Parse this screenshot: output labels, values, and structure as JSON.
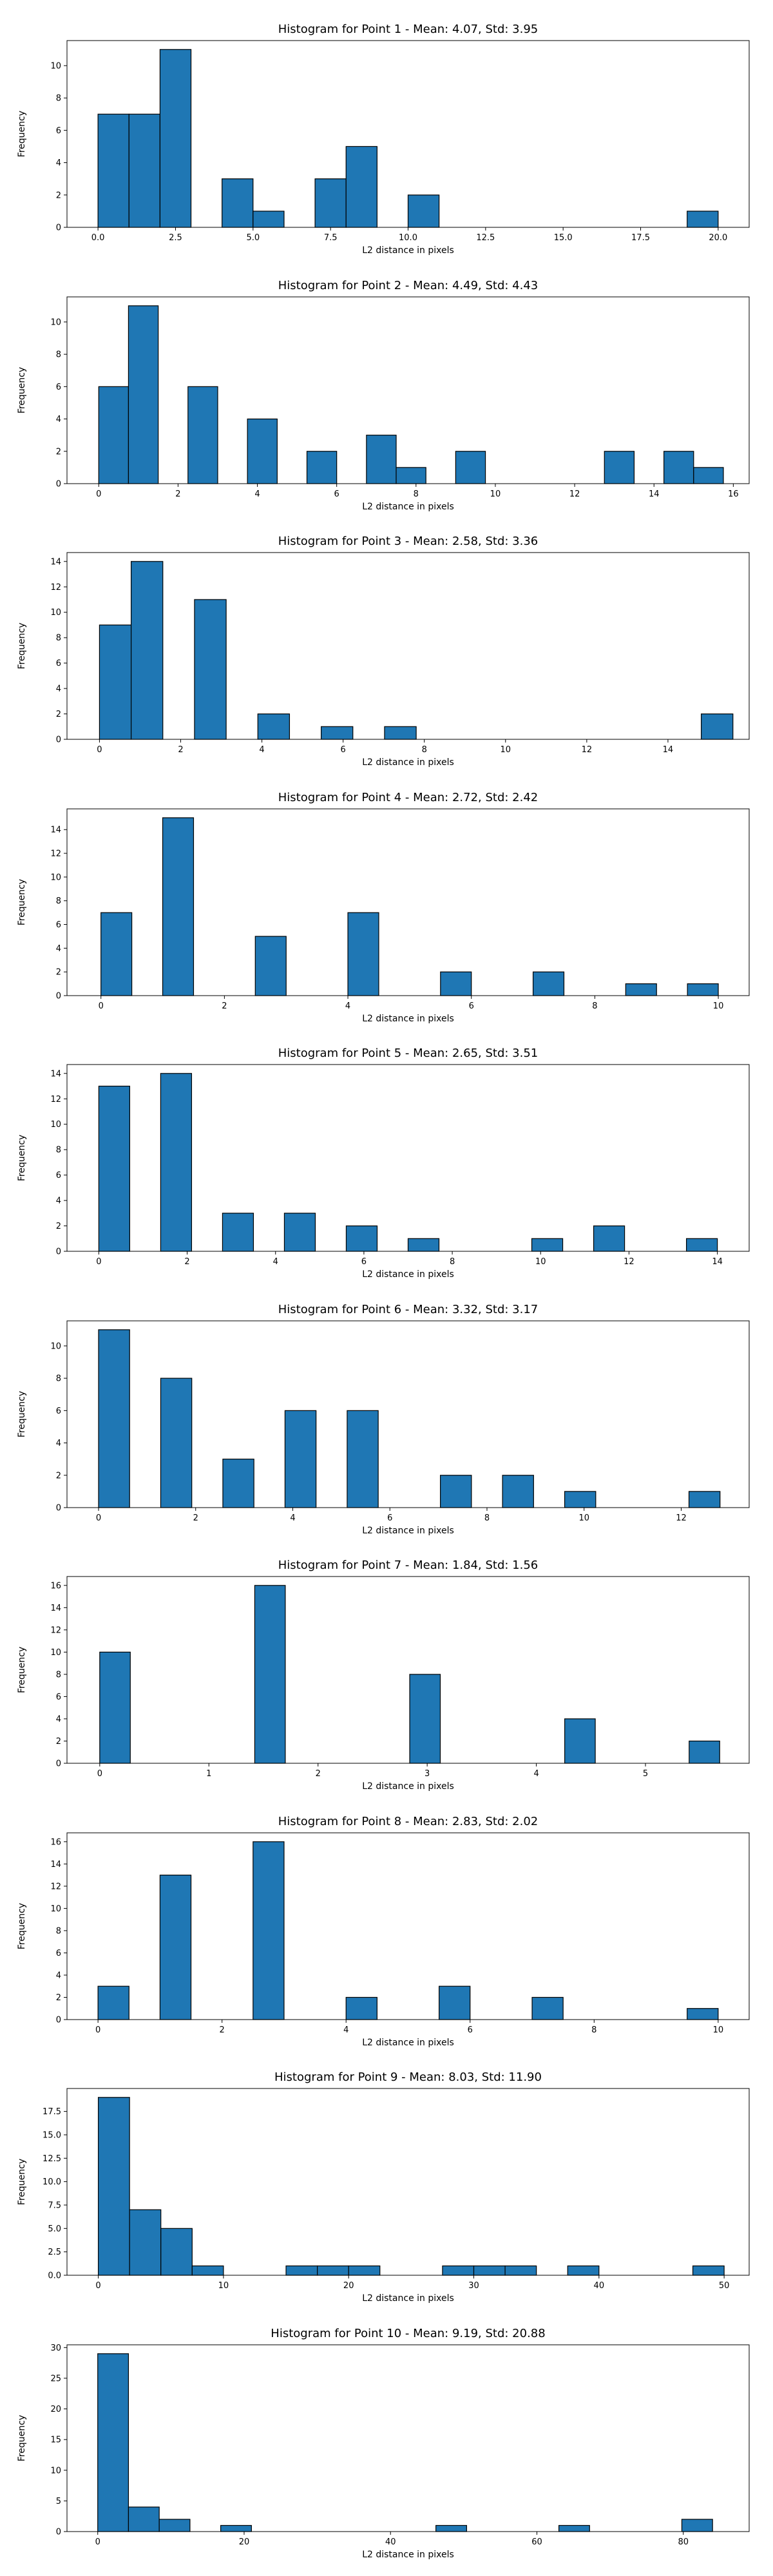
{
  "figure": {
    "bar_color": "#1f77b4",
    "edge_color": "#000000"
  },
  "chart_data": [
    {
      "type": "bar",
      "title": "Histogram for Point 1 - Mean: 4.07, Std: 3.95",
      "xlabel": "L2 distance in pixels",
      "ylabel": "Frequency",
      "xlim": [
        -1,
        21
      ],
      "ylim": [
        0,
        11.55
      ],
      "xticks": [
        0,
        2.5,
        5,
        7.5,
        10,
        12.5,
        15,
        17.5,
        20
      ],
      "xtick_labels": [
        "0.0",
        "2.5",
        "5.0",
        "7.5",
        "10.0",
        "12.5",
        "15.0",
        "17.5",
        "20.0"
      ],
      "yticks": [
        0,
        2,
        4,
        6,
        8,
        10
      ],
      "ytick_labels": [
        "0",
        "2",
        "4",
        "6",
        "8",
        "10"
      ],
      "bins": [
        [
          0,
          1,
          7
        ],
        [
          1,
          2,
          7
        ],
        [
          2,
          3,
          11
        ],
        [
          4,
          5,
          3
        ],
        [
          5,
          6,
          1
        ],
        [
          7,
          8,
          3
        ],
        [
          8,
          9,
          5
        ],
        [
          10,
          11,
          2
        ],
        [
          19,
          20,
          1
        ]
      ]
    },
    {
      "type": "bar",
      "title": "Histogram for Point 2 - Mean: 4.49, Std: 4.43",
      "xlabel": "L2 distance in pixels",
      "ylabel": "Frequency",
      "xlim": [
        -0.8,
        16.4
      ],
      "ylim": [
        0,
        11.55
      ],
      "xticks": [
        0,
        2,
        4,
        6,
        8,
        10,
        12,
        14,
        16
      ],
      "xtick_labels": [
        "0",
        "2",
        "4",
        "6",
        "8",
        "10",
        "12",
        "14",
        "16"
      ],
      "yticks": [
        0,
        2,
        4,
        6,
        8,
        10
      ],
      "ytick_labels": [
        "0",
        "2",
        "4",
        "6",
        "8",
        "10"
      ],
      "bins": [
        [
          0,
          0.75,
          6
        ],
        [
          0.75,
          1.5,
          11
        ],
        [
          2.25,
          3,
          6
        ],
        [
          3.75,
          4.5,
          4
        ],
        [
          5.25,
          6,
          2
        ],
        [
          6.75,
          7.5,
          3
        ],
        [
          7.5,
          8.25,
          1
        ],
        [
          9,
          9.75,
          2
        ],
        [
          12.75,
          13.5,
          2
        ],
        [
          14.25,
          15,
          2
        ],
        [
          15,
          15.75,
          1
        ]
      ]
    },
    {
      "type": "bar",
      "title": "Histogram for Point 3 - Mean: 2.58, Std: 3.36",
      "xlabel": "L2 distance in pixels",
      "ylabel": "Frequency",
      "xlim": [
        -0.8,
        16.0
      ],
      "ylim": [
        0,
        14.7
      ],
      "xticks": [
        0,
        2,
        4,
        6,
        8,
        10,
        12,
        14
      ],
      "xtick_labels": [
        "0",
        "2",
        "4",
        "6",
        "8",
        "10",
        "12",
        "14"
      ],
      "yticks": [
        0,
        2,
        4,
        6,
        8,
        10,
        12,
        14
      ],
      "ytick_labels": [
        "0",
        "2",
        "4",
        "6",
        "8",
        "10",
        "12",
        "14"
      ],
      "bins": [
        [
          0,
          0.78,
          9
        ],
        [
          0.78,
          1.56,
          14
        ],
        [
          2.34,
          3.12,
          11
        ],
        [
          3.9,
          4.68,
          2
        ],
        [
          5.46,
          6.24,
          1
        ],
        [
          7.02,
          7.8,
          1
        ],
        [
          14.82,
          15.6,
          2
        ]
      ]
    },
    {
      "type": "bar",
      "title": "Histogram for Point 4 - Mean: 2.72, Std: 2.42",
      "xlabel": "L2 distance in pixels",
      "ylabel": "Frequency",
      "xlim": [
        -0.55,
        10.5
      ],
      "ylim": [
        0,
        15.75
      ],
      "xticks": [
        0,
        2,
        4,
        6,
        8,
        10
      ],
      "xtick_labels": [
        "0",
        "2",
        "4",
        "6",
        "8",
        "10"
      ],
      "yticks": [
        0,
        2,
        4,
        6,
        8,
        10,
        12,
        14
      ],
      "ytick_labels": [
        "0",
        "2",
        "4",
        "6",
        "8",
        "10",
        "12",
        "14"
      ],
      "bins": [
        [
          0,
          0.5,
          7
        ],
        [
          1,
          1.5,
          15
        ],
        [
          2.5,
          3,
          5
        ],
        [
          4,
          4.5,
          7
        ],
        [
          5.5,
          6,
          2
        ],
        [
          7,
          7.5,
          2
        ],
        [
          8.5,
          9,
          1
        ],
        [
          9.5,
          10,
          1
        ]
      ]
    },
    {
      "type": "bar",
      "title": "Histogram for Point 5 - Mean: 2.65, Std: 3.51",
      "xlabel": "L2 distance in pixels",
      "ylabel": "Frequency",
      "xlim": [
        -0.72,
        14.72
      ],
      "ylim": [
        0,
        14.7
      ],
      "xticks": [
        0,
        2,
        4,
        6,
        8,
        10,
        12,
        14
      ],
      "xtick_labels": [
        "0",
        "2",
        "4",
        "6",
        "8",
        "10",
        "12",
        "14"
      ],
      "yticks": [
        0,
        2,
        4,
        6,
        8,
        10,
        12,
        14
      ],
      "ytick_labels": [
        "0",
        "2",
        "4",
        "6",
        "8",
        "10",
        "12",
        "14"
      ],
      "bins": [
        [
          0,
          0.7,
          13
        ],
        [
          1.4,
          2.1,
          14
        ],
        [
          2.8,
          3.5,
          3
        ],
        [
          4.2,
          4.9,
          3
        ],
        [
          5.6,
          6.3,
          2
        ],
        [
          7,
          7.7,
          1
        ],
        [
          9.8,
          10.5,
          1
        ],
        [
          11.2,
          11.9,
          2
        ],
        [
          13.3,
          14,
          1
        ]
      ]
    },
    {
      "type": "bar",
      "title": "Histogram for Point 6 - Mean: 3.32, Std: 3.17",
      "xlabel": "L2 distance in pixels",
      "ylabel": "Frequency",
      "xlim": [
        -0.65,
        13.4
      ],
      "ylim": [
        0,
        11.55
      ],
      "xticks": [
        0,
        2,
        4,
        6,
        8,
        10,
        12
      ],
      "xtick_labels": [
        "0",
        "2",
        "4",
        "6",
        "8",
        "10",
        "12"
      ],
      "yticks": [
        0,
        2,
        4,
        6,
        8,
        10
      ],
      "ytick_labels": [
        "0",
        "2",
        "4",
        "6",
        "8",
        "10"
      ],
      "bins": [
        [
          0,
          0.64,
          11
        ],
        [
          1.28,
          1.92,
          8
        ],
        [
          2.56,
          3.2,
          3
        ],
        [
          3.84,
          4.48,
          6
        ],
        [
          5.12,
          5.76,
          6
        ],
        [
          7.04,
          7.68,
          2
        ],
        [
          8.32,
          8.96,
          2
        ],
        [
          9.6,
          10.24,
          1
        ],
        [
          12.16,
          12.8,
          1
        ]
      ]
    },
    {
      "type": "bar",
      "title": "Histogram for Point 7 - Mean: 1.84, Std: 1.56",
      "xlabel": "L2 distance in pixels",
      "ylabel": "Frequency",
      "xlim": [
        -0.3,
        5.95
      ],
      "ylim": [
        0,
        16.8
      ],
      "xticks": [
        0,
        1,
        2,
        3,
        4,
        5
      ],
      "xtick_labels": [
        "0",
        "1",
        "2",
        "3",
        "4",
        "5"
      ],
      "yticks": [
        0,
        2,
        4,
        6,
        8,
        10,
        12,
        14,
        16
      ],
      "ytick_labels": [
        "0",
        "2",
        "4",
        "6",
        "8",
        "10",
        "12",
        "14",
        "16"
      ],
      "bins": [
        [
          0,
          0.28,
          10
        ],
        [
          1.42,
          1.7,
          16
        ],
        [
          2.84,
          3.12,
          8
        ],
        [
          4.26,
          4.54,
          4
        ],
        [
          5.4,
          5.68,
          2
        ]
      ]
    },
    {
      "type": "bar",
      "title": "Histogram for Point 8 - Mean: 2.83, Std: 2.02",
      "xlabel": "L2 distance in pixels",
      "ylabel": "Frequency",
      "xlim": [
        -0.5,
        10.5
      ],
      "ylim": [
        0,
        16.8
      ],
      "xticks": [
        0,
        2,
        4,
        6,
        8,
        10
      ],
      "xtick_labels": [
        "0",
        "2",
        "4",
        "6",
        "8",
        "10"
      ],
      "yticks": [
        0,
        2,
        4,
        6,
        8,
        10,
        12,
        14,
        16
      ],
      "ytick_labels": [
        "0",
        "2",
        "4",
        "6",
        "8",
        "10",
        "12",
        "14",
        "16"
      ],
      "bins": [
        [
          0,
          0.5,
          3
        ],
        [
          1,
          1.5,
          13
        ],
        [
          2.5,
          3,
          16
        ],
        [
          4,
          4.5,
          2
        ],
        [
          5.5,
          6,
          3
        ],
        [
          7,
          7.5,
          2
        ],
        [
          9.5,
          10,
          1
        ]
      ]
    },
    {
      "type": "bar",
      "title": "Histogram for Point 9 - Mean: 8.03, Std: 11.90",
      "xlabel": "L2 distance in pixels",
      "ylabel": "Frequency",
      "xlim": [
        -2.5,
        52
      ],
      "ylim": [
        0,
        19.95
      ],
      "xticks": [
        0,
        10,
        20,
        30,
        40,
        50
      ],
      "xtick_labels": [
        "0",
        "10",
        "20",
        "30",
        "40",
        "50"
      ],
      "yticks": [
        0,
        2.5,
        5,
        7.5,
        10,
        12.5,
        15,
        17.5
      ],
      "ytick_labels": [
        "0.0",
        "2.5",
        "5.0",
        "7.5",
        "10.0",
        "12.5",
        "15.0",
        "17.5"
      ],
      "bins": [
        [
          0,
          2.5,
          19
        ],
        [
          2.5,
          5,
          7
        ],
        [
          5,
          7.5,
          5
        ],
        [
          7.5,
          10,
          1
        ],
        [
          15,
          17.5,
          1
        ],
        [
          17.5,
          20,
          1
        ],
        [
          20,
          22.5,
          1
        ],
        [
          27.5,
          30,
          1
        ],
        [
          30,
          32.5,
          1
        ],
        [
          32.5,
          35,
          1
        ],
        [
          37.5,
          40,
          1
        ],
        [
          47.5,
          50,
          1
        ]
      ]
    },
    {
      "type": "bar",
      "title": "Histogram for Point 10 - Mean: 9.19, Std: 20.88",
      "xlabel": "L2 distance in pixels",
      "ylabel": "Frequency",
      "xlim": [
        -4.2,
        89
      ],
      "ylim": [
        0,
        30.45
      ],
      "xticks": [
        0,
        20,
        40,
        60,
        80
      ],
      "xtick_labels": [
        "0",
        "20",
        "40",
        "60",
        "80"
      ],
      "yticks": [
        0,
        5,
        10,
        15,
        20,
        25,
        30
      ],
      "ytick_labels": [
        "0",
        "5",
        "10",
        "15",
        "20",
        "25",
        "30"
      ],
      "bins": [
        [
          0,
          4.2,
          29
        ],
        [
          4.2,
          8.4,
          4
        ],
        [
          8.4,
          12.6,
          2
        ],
        [
          16.8,
          21,
          1
        ],
        [
          46.2,
          50.4,
          1
        ],
        [
          63,
          67.2,
          1
        ],
        [
          79.8,
          84,
          2
        ]
      ]
    }
  ]
}
